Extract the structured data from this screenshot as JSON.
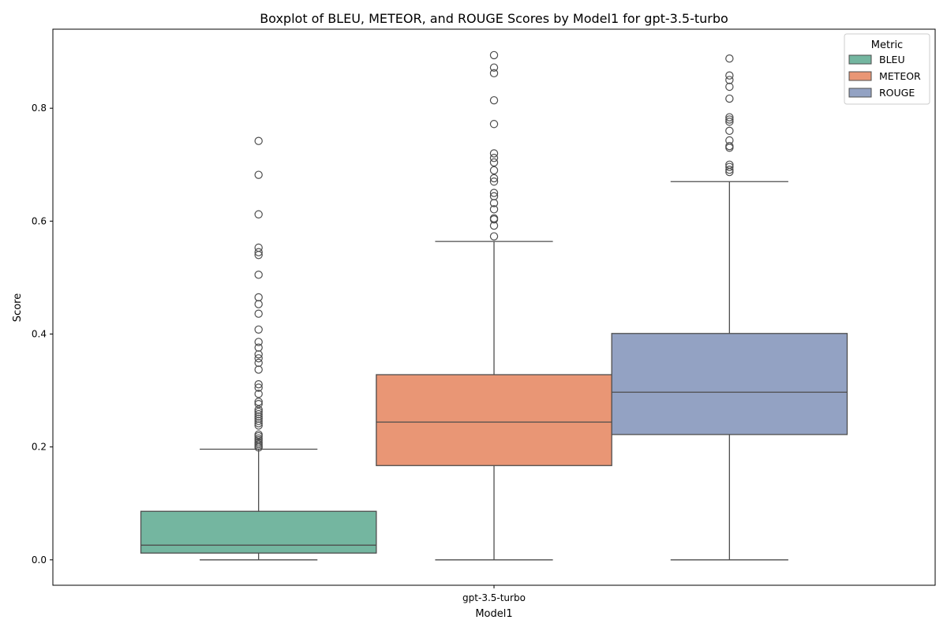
{
  "chart_data": {
    "type": "boxplot",
    "title": "Boxplot of BLEU, METEOR, and ROUGE Scores by Model1 for gpt-3.5-turbo",
    "xlabel": "Model1",
    "ylabel": "Score",
    "categories": [
      "gpt-3.5-turbo"
    ],
    "ylim": [
      -0.045,
      0.94
    ],
    "yticks": [
      "0.0",
      "0.2",
      "0.4",
      "0.6",
      "0.8"
    ],
    "yticks_values": [
      0.0,
      0.2,
      0.4,
      0.6,
      0.8
    ],
    "grid": false,
    "legend": {
      "title": "Metric",
      "placement": "top-right"
    },
    "series": [
      {
        "name": "BLEU",
        "color": "#74b6a0",
        "min": 0.0,
        "q1": 0.012,
        "median": 0.026,
        "q3": 0.086,
        "max": 0.196,
        "outliers": [
          0.742,
          0.682,
          0.612,
          0.553,
          0.545,
          0.54,
          0.505,
          0.465,
          0.453,
          0.436,
          0.408,
          0.386,
          0.376,
          0.364,
          0.357,
          0.349,
          0.337,
          0.311,
          0.305,
          0.294,
          0.28,
          0.276,
          0.266,
          0.262,
          0.258,
          0.254,
          0.25,
          0.246,
          0.242,
          0.238,
          0.222,
          0.219,
          0.215,
          0.212,
          0.208,
          0.205,
          0.202,
          0.199
        ]
      },
      {
        "name": "METEOR",
        "color": "#e99675",
        "min": 0.0,
        "q1": 0.167,
        "median": 0.244,
        "q3": 0.328,
        "max": 0.564,
        "outliers": [
          0.894,
          0.872,
          0.862,
          0.814,
          0.772,
          0.72,
          0.712,
          0.704,
          0.69,
          0.676,
          0.67,
          0.65,
          0.644,
          0.632,
          0.621,
          0.605,
          0.603,
          0.592,
          0.573
        ]
      },
      {
        "name": "ROUGE",
        "color": "#93a2c3",
        "min": 0.0,
        "q1": 0.222,
        "median": 0.297,
        "q3": 0.401,
        "max": 0.67,
        "outliers": [
          0.888,
          0.858,
          0.85,
          0.838,
          0.817,
          0.784,
          0.78,
          0.776,
          0.76,
          0.743,
          0.733,
          0.73,
          0.7,
          0.696,
          0.691,
          0.687
        ]
      }
    ]
  }
}
